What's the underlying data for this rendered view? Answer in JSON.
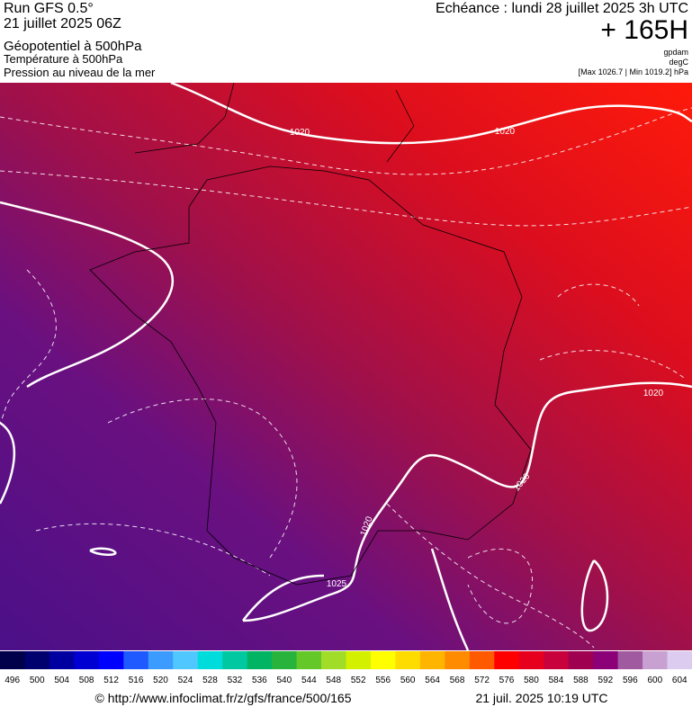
{
  "header": {
    "run": "Run GFS 0.5°",
    "date": "21 juillet 2025 06Z",
    "field1": "Géopotentiel à 500hPa",
    "field2": "Température à 500hPa",
    "field3": "Pression au niveau de la mer",
    "echeance": "Echéance : lundi 28 juillet 2025 3h UTC",
    "lead": "+ 165H",
    "unit1": "gpdam",
    "unit2": "degC",
    "range": "[Max 1026.7 | Min 1019.2] hPa"
  },
  "contours": [
    "1020",
    "1020",
    "1020",
    "1020",
    "1020",
    "1025"
  ],
  "legend": {
    "labels": [
      496,
      500,
      504,
      508,
      512,
      516,
      520,
      524,
      528,
      532,
      536,
      540,
      544,
      548,
      552,
      556,
      560,
      564,
      568,
      572,
      576,
      580,
      584,
      588,
      592,
      596,
      600,
      604
    ],
    "colors": [
      "#00004b",
      "#00006e",
      "#0000a0",
      "#0000d2",
      "#0000ff",
      "#1e5aff",
      "#3c9bff",
      "#50c8ff",
      "#00dcdc",
      "#00c8a0",
      "#00b464",
      "#28b43c",
      "#64c828",
      "#a0dc28",
      "#d2f000",
      "#ffff00",
      "#ffdc00",
      "#ffb400",
      "#ff8c00",
      "#ff5a00",
      "#ff0000",
      "#e6001e",
      "#c8003c",
      "#a00050",
      "#8c0078",
      "#a05aa0",
      "#c8a0d2",
      "#dccdf0"
    ]
  },
  "footer": {
    "url": "© http://www.infoclimat.fr/z/gfs/france/500/165",
    "generated": "21 juil. 2025 10:19 UTC"
  }
}
